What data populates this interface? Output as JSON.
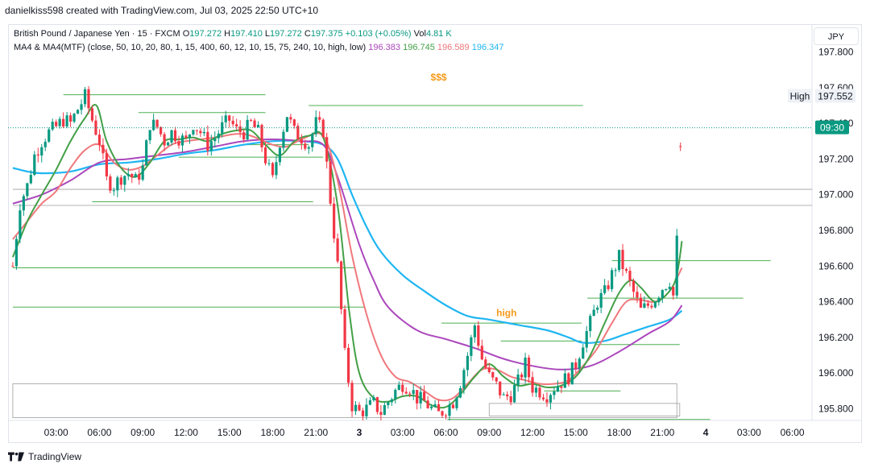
{
  "header": {
    "attribution": "danielkiss598 created with TradingView.com, Jul 03, 2025 22:50 UTC+10"
  },
  "legend": {
    "symbol": "British Pound / Japanese Yen · 15 · FXCM",
    "open_label": "O",
    "open": "197.272",
    "high_label": "H",
    "high": "197.410",
    "low_label": "L",
    "low": "197.272",
    "close_label": "C",
    "close": "197.375",
    "change": "+0.103 (+0.05%)",
    "volume_label": "Vol",
    "volume": "4.81 K",
    "indicator": "MA4 & MA4(MTF) (close, 50, 10, 20, 80, 1, 15, 400, 60, 12, 10, 15, 75, 240, 10, high, low)",
    "ma_values": [
      "196.383",
      "196.745",
      "196.589",
      "196.347"
    ]
  },
  "currency": "JPY",
  "footer": {
    "brand": "TradingView"
  },
  "colors": {
    "up": "#089981",
    "down": "#f23645",
    "ma_purple": "#ab47bc",
    "ma_green": "#43a047",
    "ma_red": "#f0787d",
    "ma_cyan": "#1fb6f2",
    "level_green": "#4caf50",
    "annotation": "#f59a1b"
  },
  "chart_data": {
    "type": "candlestick",
    "y_axis": {
      "range": [
        195.72,
        197.87
      ],
      "ticks": [
        "197.800",
        "197.600",
        "197.400",
        "197.200",
        "197.000",
        "196.800",
        "196.600",
        "196.400",
        "196.200",
        "196.000",
        "195.800"
      ]
    },
    "x_axis": {
      "ticks": [
        {
          "label": "03:00",
          "h": 3
        },
        {
          "label": "06:00",
          "h": 6
        },
        {
          "label": "09:00",
          "h": 9
        },
        {
          "label": "12:00",
          "h": 12
        },
        {
          "label": "15:00",
          "h": 15
        },
        {
          "label": "18:00",
          "h": 18
        },
        {
          "label": "21:00",
          "h": 21
        },
        {
          "label": "3",
          "h": 24
        },
        {
          "label": "03:00",
          "h": 27
        },
        {
          "label": "06:00",
          "h": 30
        },
        {
          "label": "09:00",
          "h": 33
        },
        {
          "label": "12:00",
          "h": 36
        },
        {
          "label": "15:00",
          "h": 39
        },
        {
          "label": "18:00",
          "h": 42
        },
        {
          "label": "21:00",
          "h": 45
        },
        {
          "label": "4",
          "h": 48
        },
        {
          "label": "03:00",
          "h": 51
        },
        {
          "label": "06:00",
          "h": 54
        }
      ]
    },
    "price_labels": [
      {
        "label": "High",
        "value": "197.552",
        "price": 197.552,
        "kind": "high"
      },
      {
        "label": "09:30",
        "value": "197.375",
        "price": 197.375,
        "kind": "current"
      }
    ],
    "annotations": [
      {
        "text": "$$$",
        "h": 29.5,
        "price": 197.64
      },
      {
        "text": "high",
        "h": 34.2,
        "price": 196.32
      }
    ],
    "levels": [
      {
        "h0": 3.5,
        "h1": 17.5,
        "price": 197.56
      },
      {
        "h0": 8.7,
        "h1": 17.5,
        "price": 197.46
      },
      {
        "h0": 20.5,
        "h1": 39.5,
        "price": 197.5
      },
      {
        "h0": 16,
        "h1": 20.5,
        "price": 197.28
      },
      {
        "h0": 11.5,
        "h1": 21.5,
        "price": 197.21
      },
      {
        "h0": 5.5,
        "h1": 20.8,
        "price": 196.96
      },
      {
        "h0": 0,
        "h1": 23.7,
        "price": 196.59
      },
      {
        "h0": 0,
        "h1": 24.4,
        "price": 196.37
      },
      {
        "h0": 29.7,
        "h1": 39.4,
        "price": 196.28
      },
      {
        "h0": 33.8,
        "h1": 39.4,
        "price": 196.18
      },
      {
        "h0": 41.5,
        "h1": 52.5,
        "price": 196.63
      },
      {
        "h0": 39.8,
        "h1": 50.6,
        "price": 196.42
      },
      {
        "h0": 40.4,
        "h1": 46.2,
        "price": 196.16
      },
      {
        "h0": 36.8,
        "h1": 42.1,
        "price": 195.9
      },
      {
        "h0": 30.1,
        "h1": 48.3,
        "price": 195.74
      }
    ],
    "gray_levels": [
      {
        "h0": 0,
        "h1": 55.5,
        "price": 197.03
      },
      {
        "h0": 0,
        "h1": 55.5,
        "price": 196.94
      }
    ],
    "zones": [
      {
        "h0": 0,
        "h1": 46.0,
        "top": 195.94,
        "bottom": 195.75
      },
      {
        "h0": 33.0,
        "h1": 46.2,
        "top": 195.83,
        "bottom": 195.76
      }
    ],
    "candle_path": [
      [
        0,
        196.6
      ],
      [
        0.5,
        196.95
      ],
      [
        1,
        197.05
      ],
      [
        1.5,
        197.22
      ],
      [
        2,
        197.3
      ],
      [
        2.5,
        197.35
      ],
      [
        3,
        197.38
      ],
      [
        3.5,
        197.42
      ],
      [
        4,
        197.4
      ],
      [
        4.5,
        197.48
      ],
      [
        5,
        197.55
      ],
      [
        5.5,
        197.42
      ],
      [
        6,
        197.3
      ],
      [
        6.5,
        197.08
      ],
      [
        7,
        197.05
      ],
      [
        7.5,
        197.1
      ],
      [
        8,
        197.12
      ],
      [
        8.5,
        197.08
      ],
      [
        9,
        197.15
      ],
      [
        9.5,
        197.4
      ],
      [
        10,
        197.38
      ],
      [
        10.5,
        197.3
      ],
      [
        11,
        197.35
      ],
      [
        11.5,
        197.32
      ],
      [
        12,
        197.3
      ],
      [
        12.5,
        197.4
      ],
      [
        13,
        197.35
      ],
      [
        13.5,
        197.28
      ],
      [
        14,
        197.32
      ],
      [
        14.5,
        197.38
      ],
      [
        15,
        197.42
      ],
      [
        15.5,
        197.36
      ],
      [
        16,
        197.35
      ],
      [
        16.5,
        197.4
      ],
      [
        17,
        197.35
      ],
      [
        17.5,
        197.2
      ],
      [
        18,
        197.08
      ],
      [
        18.5,
        197.3
      ],
      [
        19,
        197.45
      ],
      [
        19.5,
        197.35
      ],
      [
        20,
        197.32
      ],
      [
        20.5,
        197.28
      ],
      [
        21,
        197.4
      ],
      [
        21.5,
        197.36
      ],
      [
        22,
        196.97
      ],
      [
        22.5,
        196.6
      ],
      [
        23,
        196.1
      ],
      [
        23.5,
        195.82
      ],
      [
        24,
        195.78
      ],
      [
        24.5,
        195.8
      ],
      [
        25,
        195.83
      ],
      [
        25.5,
        195.78
      ],
      [
        26,
        195.84
      ],
      [
        26.5,
        195.9
      ],
      [
        27,
        195.94
      ],
      [
        27.5,
        195.92
      ],
      [
        28,
        195.86
      ],
      [
        28.5,
        195.84
      ],
      [
        29,
        195.8
      ],
      [
        29.5,
        195.77
      ],
      [
        30,
        195.8
      ],
      [
        30.5,
        195.84
      ],
      [
        31,
        195.95
      ],
      [
        31.5,
        196.1
      ],
      [
        32,
        196.27
      ],
      [
        32.5,
        196.08
      ],
      [
        33,
        195.98
      ],
      [
        33.5,
        195.93
      ],
      [
        34,
        195.86
      ],
      [
        34.5,
        195.88
      ],
      [
        35,
        195.95
      ],
      [
        35.5,
        196.05
      ],
      [
        36,
        195.92
      ],
      [
        36.5,
        195.9
      ],
      [
        37,
        195.88
      ],
      [
        37.5,
        195.92
      ],
      [
        38,
        195.95
      ],
      [
        38.5,
        195.98
      ],
      [
        39,
        196.05
      ],
      [
        39.5,
        196.18
      ],
      [
        40,
        196.28
      ],
      [
        40.5,
        196.4
      ],
      [
        41,
        196.45
      ],
      [
        41.5,
        196.55
      ],
      [
        42,
        196.65
      ],
      [
        42.5,
        196.55
      ],
      [
        43,
        196.45
      ],
      [
        43.5,
        196.35
      ],
      [
        44,
        196.38
      ],
      [
        44.5,
        196.42
      ],
      [
        45,
        196.48
      ],
      [
        45.5,
        196.52
      ],
      [
        45.85,
        196.4
      ],
      [
        46.0,
        196.74
      ],
      [
        46.2,
        197.27
      ],
      [
        46.35,
        197.375
      ]
    ],
    "ma_series": [
      {
        "name": "196.383",
        "color": "ma_purple",
        "points": [
          [
            0,
            196.95
          ],
          [
            2,
            197.0
          ],
          [
            4,
            197.08
          ],
          [
            6,
            197.18
          ],
          [
            8,
            197.2
          ],
          [
            10,
            197.22
          ],
          [
            12,
            197.24
          ],
          [
            14,
            197.27
          ],
          [
            16,
            197.3
          ],
          [
            18,
            197.31
          ],
          [
            20,
            197.3
          ],
          [
            21.5,
            197.28
          ],
          [
            22.5,
            197.1
          ],
          [
            24,
            196.72
          ],
          [
            25,
            196.52
          ],
          [
            26,
            196.37
          ],
          [
            28,
            196.24
          ],
          [
            30,
            196.19
          ],
          [
            32,
            196.14
          ],
          [
            34,
            196.08
          ],
          [
            36,
            196.04
          ],
          [
            38,
            196.02
          ],
          [
            40,
            196.04
          ],
          [
            42,
            196.12
          ],
          [
            44,
            196.22
          ],
          [
            45.5,
            196.29
          ],
          [
            46.35,
            196.38
          ]
        ]
      },
      {
        "name": "196.745",
        "color": "ma_green",
        "points": [
          [
            0,
            196.65
          ],
          [
            1,
            196.85
          ],
          [
            2,
            197.0
          ],
          [
            3,
            197.14
          ],
          [
            4,
            197.3
          ],
          [
            5,
            197.43
          ],
          [
            5.8,
            197.5
          ],
          [
            6.5,
            197.3
          ],
          [
            7.5,
            197.15
          ],
          [
            8.5,
            197.1
          ],
          [
            9.5,
            197.18
          ],
          [
            10.5,
            197.3
          ],
          [
            11.5,
            197.31
          ],
          [
            12.5,
            197.32
          ],
          [
            13.5,
            197.3
          ],
          [
            14.5,
            197.34
          ],
          [
            15.5,
            197.36
          ],
          [
            16.5,
            197.36
          ],
          [
            17.5,
            197.28
          ],
          [
            18.5,
            197.22
          ],
          [
            19.5,
            197.3
          ],
          [
            20.5,
            197.33
          ],
          [
            21.5,
            197.32
          ],
          [
            22.5,
            196.94
          ],
          [
            23.3,
            196.35
          ],
          [
            24,
            196.0
          ],
          [
            25,
            195.86
          ],
          [
            26,
            195.84
          ],
          [
            27,
            195.87
          ],
          [
            28,
            195.87
          ],
          [
            29,
            195.82
          ],
          [
            30,
            195.81
          ],
          [
            31,
            195.88
          ],
          [
            32,
            195.98
          ],
          [
            33,
            196.05
          ],
          [
            34,
            195.98
          ],
          [
            35,
            195.93
          ],
          [
            36,
            195.94
          ],
          [
            37,
            195.92
          ],
          [
            38,
            195.93
          ],
          [
            39,
            195.98
          ],
          [
            40,
            196.1
          ],
          [
            41,
            196.28
          ],
          [
            42,
            196.45
          ],
          [
            42.8,
            196.52
          ],
          [
            43.5,
            196.48
          ],
          [
            44.5,
            196.4
          ],
          [
            45.5,
            196.46
          ],
          [
            46.0,
            196.55
          ],
          [
            46.35,
            196.74
          ]
        ]
      },
      {
        "name": "196.589",
        "color": "ma_red",
        "points": [
          [
            0,
            196.75
          ],
          [
            1,
            196.85
          ],
          [
            2,
            196.95
          ],
          [
            3,
            197.02
          ],
          [
            4,
            197.15
          ],
          [
            5,
            197.25
          ],
          [
            6,
            197.28
          ],
          [
            7,
            197.18
          ],
          [
            8,
            197.14
          ],
          [
            9,
            197.16
          ],
          [
            10,
            197.22
          ],
          [
            11,
            197.28
          ],
          [
            12,
            197.3
          ],
          [
            14,
            197.32
          ],
          [
            16,
            197.34
          ],
          [
            18,
            197.28
          ],
          [
            19,
            197.27
          ],
          [
            20,
            197.31
          ],
          [
            21.5,
            197.33
          ],
          [
            22.5,
            197.08
          ],
          [
            23.5,
            196.66
          ],
          [
            24.5,
            196.33
          ],
          [
            25.5,
            196.1
          ],
          [
            26.5,
            195.98
          ],
          [
            27.5,
            195.95
          ],
          [
            28.5,
            195.9
          ],
          [
            29.5,
            195.85
          ],
          [
            30.5,
            195.86
          ],
          [
            31.5,
            195.94
          ],
          [
            32.5,
            196.02
          ],
          [
            33.5,
            196.02
          ],
          [
            34.5,
            195.98
          ],
          [
            35.5,
            195.96
          ],
          [
            36.5,
            195.94
          ],
          [
            37.5,
            195.94
          ],
          [
            38.5,
            195.96
          ],
          [
            39.5,
            196.04
          ],
          [
            40.5,
            196.14
          ],
          [
            41.5,
            196.28
          ],
          [
            42.5,
            196.4
          ],
          [
            43.5,
            196.41
          ],
          [
            44.5,
            196.4
          ],
          [
            45.5,
            196.46
          ],
          [
            46.35,
            196.59
          ]
        ]
      },
      {
        "name": "196.347",
        "color": "ma_cyan",
        "points": [
          [
            0,
            197.15
          ],
          [
            1,
            197.13
          ],
          [
            2,
            197.12
          ],
          [
            4,
            197.13
          ],
          [
            6,
            197.17
          ],
          [
            8,
            197.18
          ],
          [
            10,
            197.2
          ],
          [
            12,
            197.23
          ],
          [
            14,
            197.25
          ],
          [
            16,
            197.28
          ],
          [
            18,
            197.3
          ],
          [
            20,
            197.3
          ],
          [
            21.5,
            197.28
          ],
          [
            22.5,
            197.2
          ],
          [
            23.5,
            197.0
          ],
          [
            24.5,
            196.82
          ],
          [
            25.5,
            196.68
          ],
          [
            27,
            196.55
          ],
          [
            28.5,
            196.46
          ],
          [
            30,
            196.38
          ],
          [
            31.5,
            196.32
          ],
          [
            33,
            196.3
          ],
          [
            35,
            196.27
          ],
          [
            37,
            196.24
          ],
          [
            38.5,
            196.2
          ],
          [
            39.5,
            196.17
          ],
          [
            41,
            196.18
          ],
          [
            42.5,
            196.22
          ],
          [
            44,
            196.26
          ],
          [
            45.5,
            196.3
          ],
          [
            46.35,
            196.35
          ]
        ]
      }
    ]
  }
}
